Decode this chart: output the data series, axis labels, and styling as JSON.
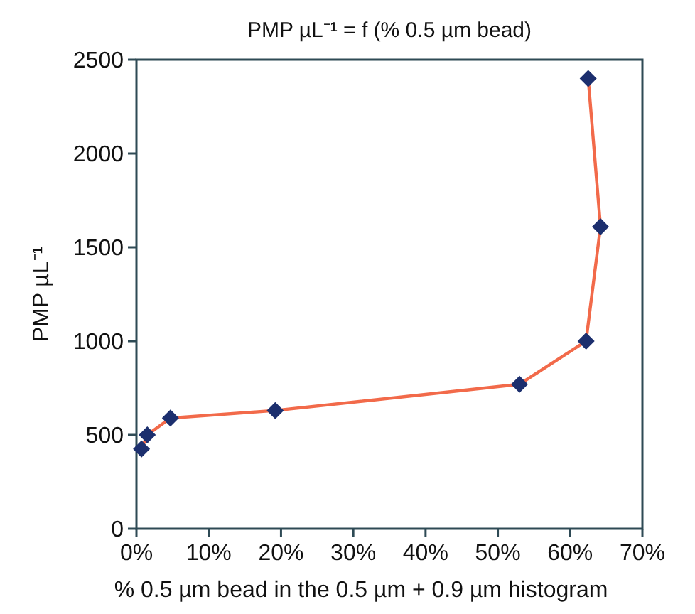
{
  "chart_data": {
    "type": "line",
    "title": "PMP µL⁻¹ = f (% 0.5 µm bead)",
    "xlabel": "% 0.5 µm bead in the 0.5 µm + 0.9 µm histogram",
    "ylabel": "PMP µL⁻¹",
    "x": [
      0.7,
      1.5,
      4.7,
      19.2,
      53,
      62.2,
      64.2,
      62.5
    ],
    "series": [
      {
        "color": "#f26a4a",
        "values": [
          425,
          500,
          590,
          630,
          770,
          1000,
          1610,
          2400
        ]
      }
    ],
    "marker": "diamond",
    "line_style": "solid",
    "grid": false,
    "xlim": [
      0,
      70
    ],
    "xticks": [
      {
        "value": 0,
        "label": "0%"
      },
      {
        "value": 10,
        "label": "10%"
      },
      {
        "value": 20,
        "label": "20%"
      },
      {
        "value": 30,
        "label": "30%"
      },
      {
        "value": 40,
        "label": "40%"
      },
      {
        "value": 50,
        "label": "50%"
      },
      {
        "value": 60,
        "label": "60%"
      },
      {
        "value": 70,
        "label": "70%"
      }
    ],
    "ylim": [
      0,
      2500
    ],
    "yticks": [
      0,
      500,
      1000,
      1500,
      2000,
      2500
    ]
  }
}
